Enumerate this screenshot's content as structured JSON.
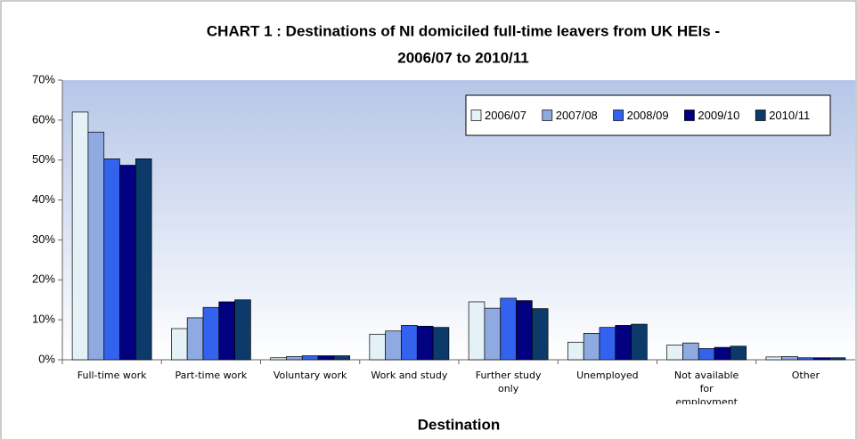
{
  "chart_data": {
    "type": "bar",
    "title": [
      "CHART 1 : Destinations of NI domiciled full-time leavers from UK HEIs -",
      "2006/07 to 2010/11"
    ],
    "x_label": "Destination",
    "categories": [
      "Full-time work",
      "Part-time work",
      "Voluntary work",
      "Work and study",
      "Further study only",
      "Unemployed",
      "Not available for employment",
      "Other"
    ],
    "series": [
      {
        "name": "2006/07",
        "color": "#e4f2f8",
        "values": [
          62,
          7.8,
          0.5,
          6.4,
          14.5,
          4.4,
          3.7,
          0.7
        ]
      },
      {
        "name": "2007/08",
        "color": "#8eaae0",
        "values": [
          57,
          10.5,
          0.8,
          7.2,
          12.9,
          6.6,
          4.2,
          0.8
        ]
      },
      {
        "name": "2008/09",
        "color": "#3362ee",
        "values": [
          50.3,
          13.1,
          1.0,
          8.6,
          15.4,
          8.1,
          2.8,
          0.5
        ]
      },
      {
        "name": "2009/10",
        "color": "#000080",
        "values": [
          48.7,
          14.5,
          1.0,
          8.4,
          14.8,
          8.6,
          3.1,
          0.5
        ]
      },
      {
        "name": "2010/11",
        "color": "#0b3a6b",
        "values": [
          50.3,
          15.0,
          1.0,
          8.1,
          12.8,
          8.9,
          3.4,
          0.5
        ]
      }
    ],
    "ylim": [
      0,
      70
    ],
    "yticks": [
      {
        "value": 0,
        "label": "0%"
      },
      {
        "value": 10,
        "label": "10%"
      },
      {
        "value": 20,
        "label": "20%"
      },
      {
        "value": 30,
        "label": "30%"
      },
      {
        "value": 40,
        "label": "40%"
      },
      {
        "value": 50,
        "label": "50%"
      },
      {
        "value": 60,
        "label": "60%"
      },
      {
        "value": 70,
        "label": "70%"
      }
    ],
    "legend": "top-right"
  }
}
